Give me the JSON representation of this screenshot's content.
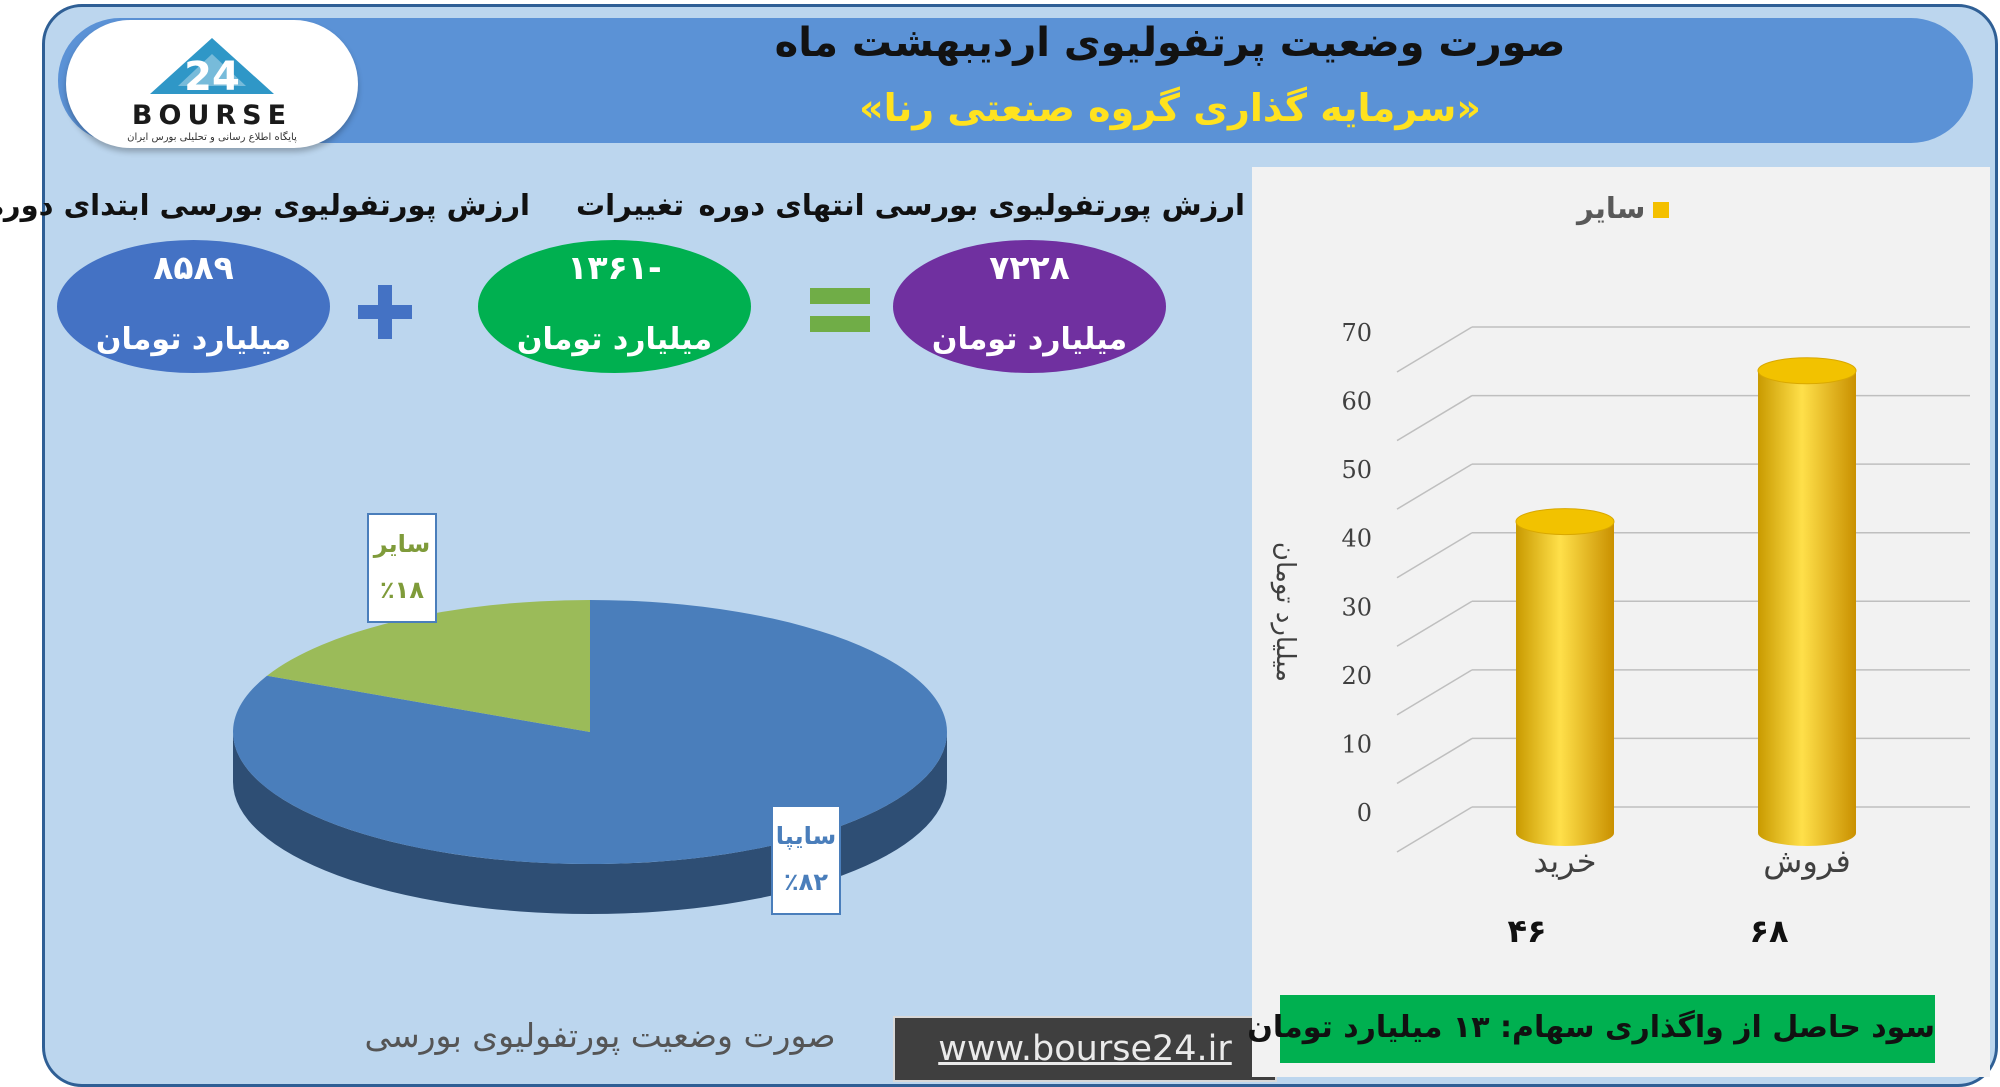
{
  "header": {
    "title": "صورت وضعیت پرتفولیوی اردیبهشت ماه",
    "subtitle": "«سرمایه گذاری گروه صنعتی رنا»"
  },
  "logo": {
    "number": "24",
    "word": "BOURSE",
    "tagline": "پایگاه اطلاع رسانی و تحلیلی بورس ایران"
  },
  "summary": {
    "start": {
      "label": "ارزش پورتفولیوی بورسی ابتدای دوره",
      "value": "۸۵۸۹",
      "unit": "میلیارد تومان",
      "color": "#4472c4"
    },
    "change": {
      "label": "تغییرات",
      "value": "-۱۳۶۱",
      "unit": "میلیارد تومان",
      "color": "#00b050"
    },
    "end": {
      "label": "ارزش پورتفولیوی بورسی انتهای دوره",
      "value": "۷۲۲۸",
      "unit": "میلیارد تومان",
      "color": "#7030a0"
    },
    "plus_color": "#4472c4",
    "equals_color": "#70ad47"
  },
  "pie_caption": "صورت وضعیت پورتفولیوی بورسی",
  "website": "www.bourse24.ir",
  "profit_note": "سود حاصل از واگذاری سهام: ۱۳ میلیارد تومان",
  "chart_data": [
    {
      "type": "pie",
      "slices": [
        {
          "label": "سایپا",
          "value": 82,
          "pct_label": "٪۸۲",
          "color": "#4a7ebb"
        },
        {
          "label": "سایر",
          "value": 18,
          "pct_label": "٪۱۸",
          "color": "#9bbb59"
        }
      ]
    },
    {
      "type": "bar",
      "categories": [
        "خرید",
        "فروش"
      ],
      "series": [
        {
          "name": "سایر",
          "values": [
            46,
            68
          ],
          "color": "#f4c000"
        }
      ],
      "value_labels": [
        "۴۶",
        "۶۸"
      ],
      "ylabel": "میلیارد تومان",
      "ylim": [
        0,
        70
      ],
      "yticks": [
        0,
        10,
        20,
        30,
        40,
        50,
        60,
        70
      ],
      "legend": "top",
      "grid": true
    }
  ]
}
